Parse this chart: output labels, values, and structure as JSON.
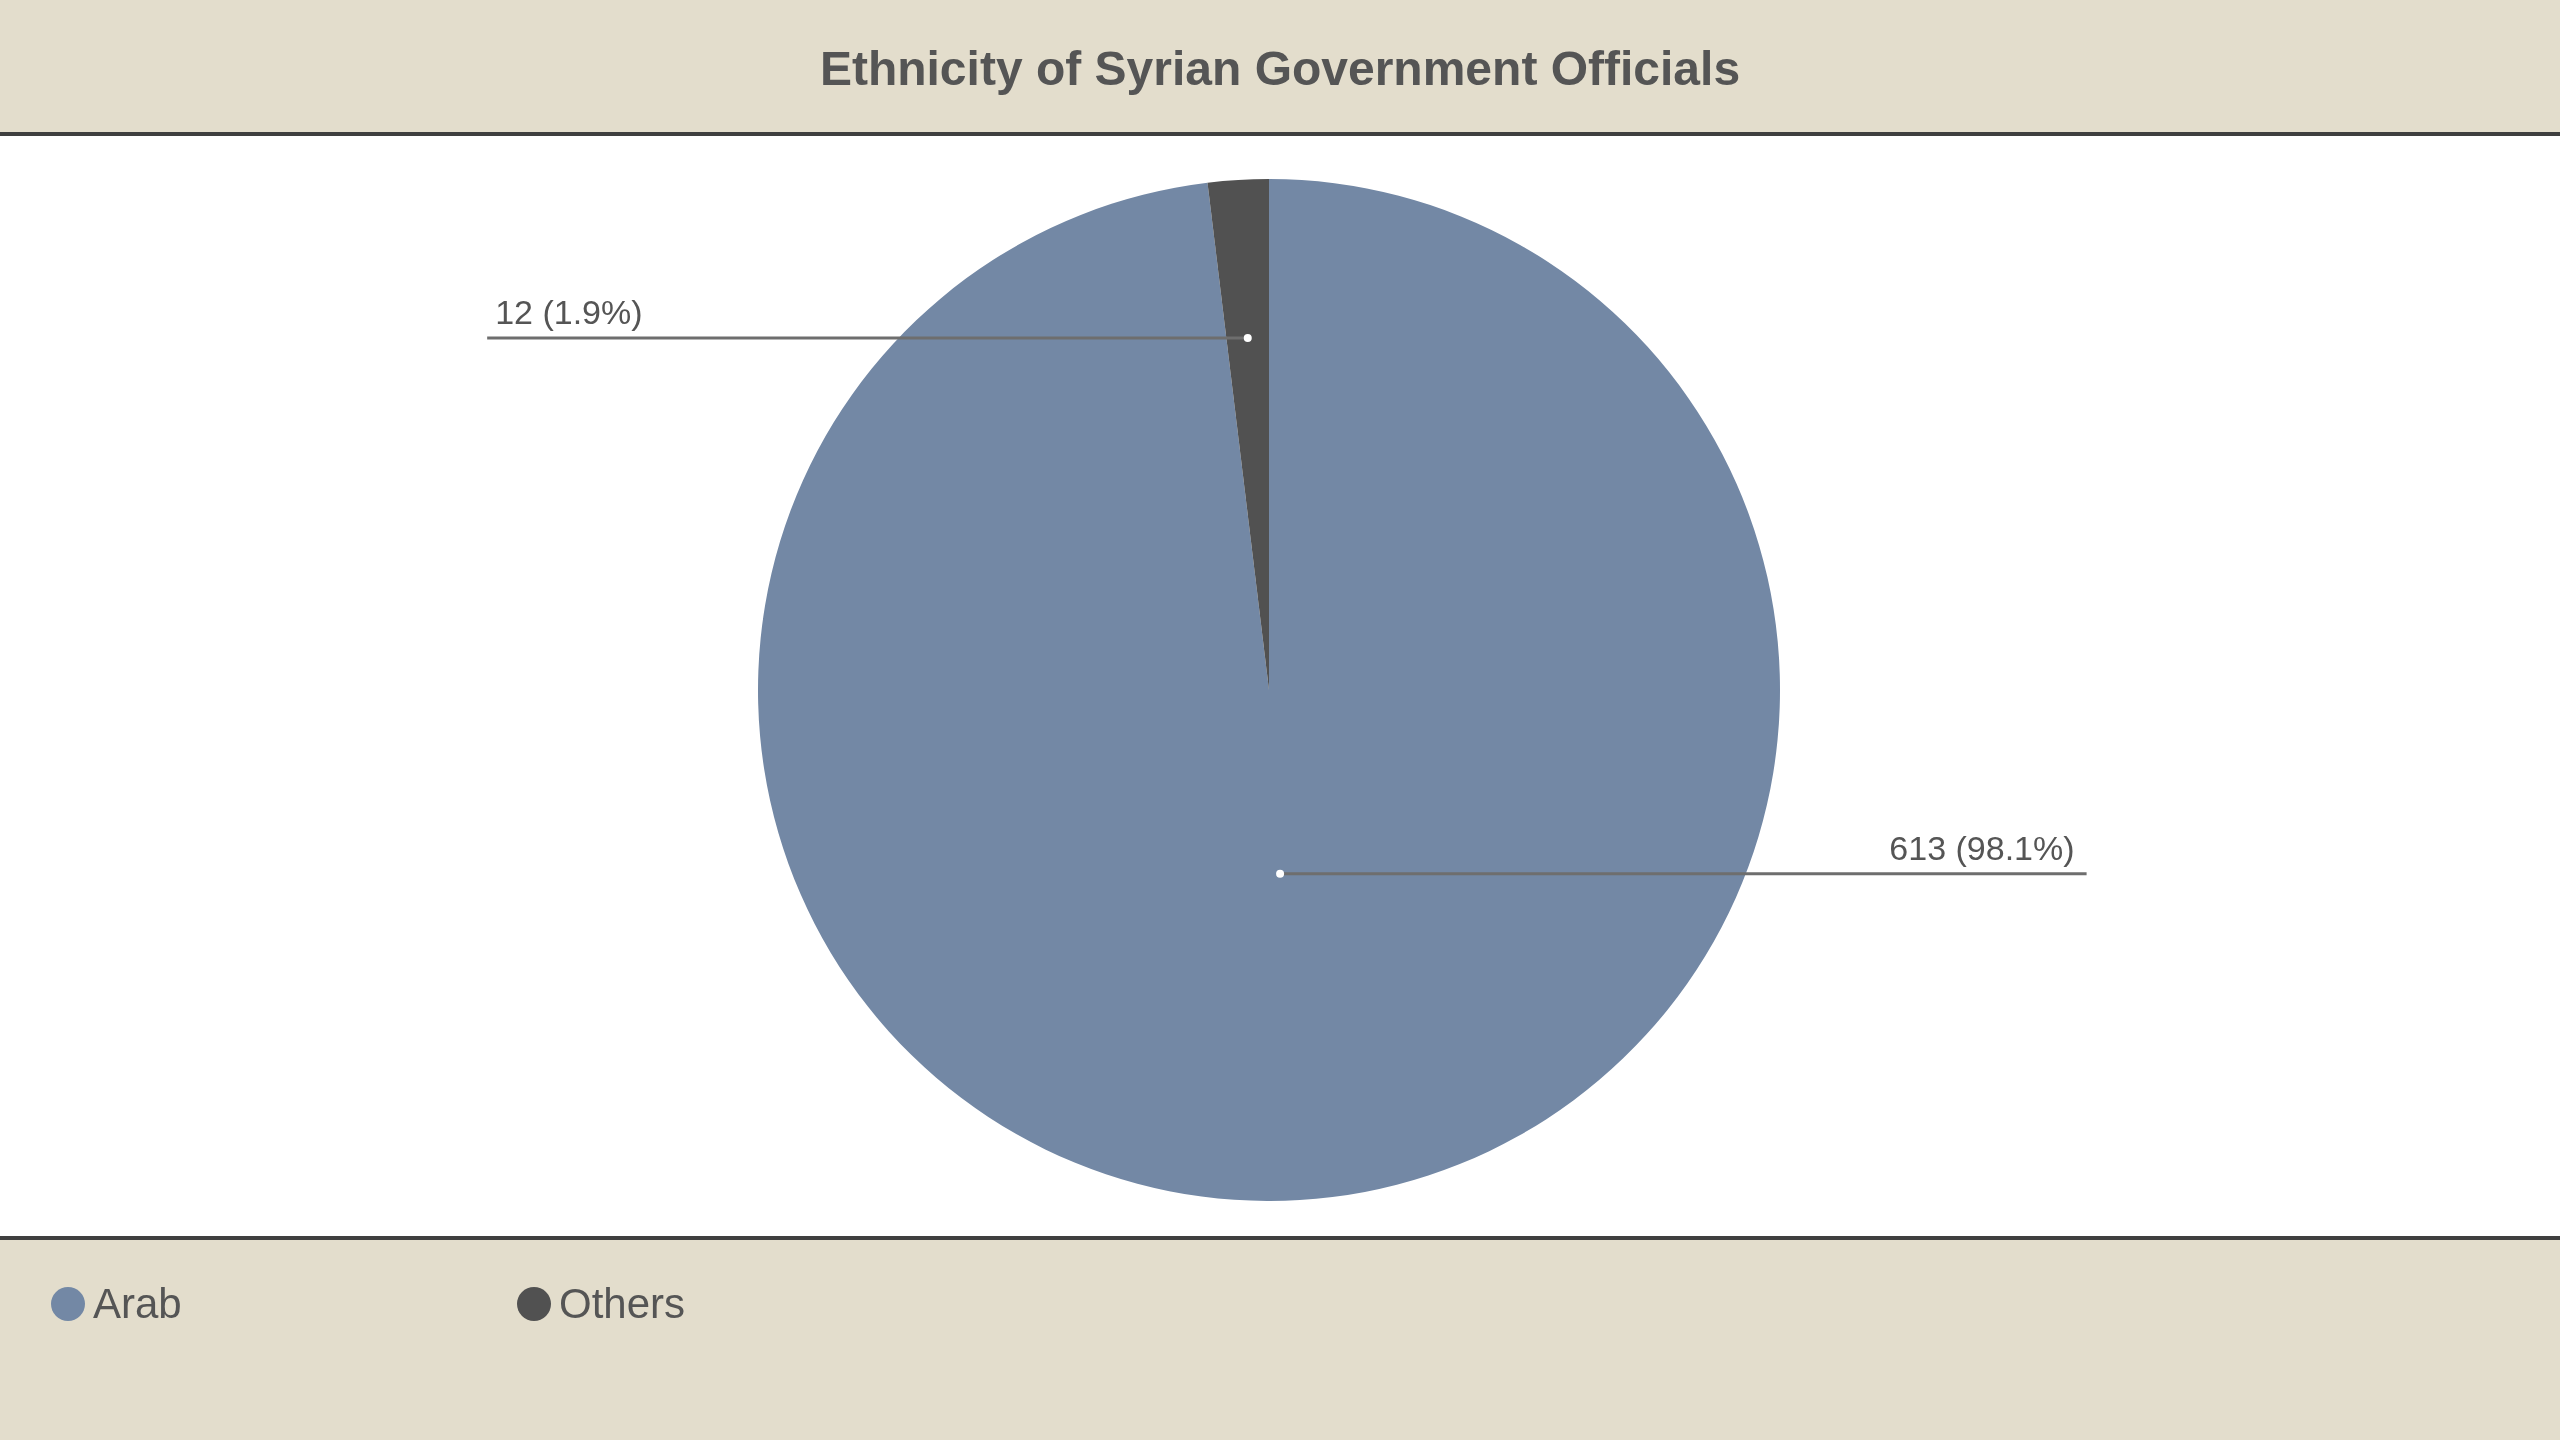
{
  "chart_data": {
    "type": "pie",
    "title": "Ethnicity of Syrian Government Officials",
    "categories": [
      "Arab",
      "Others"
    ],
    "values": [
      613,
      12
    ],
    "colors": [
      "#7388a5",
      "#515151"
    ],
    "value_labels": [
      "613 (98.1%)",
      "12 (1.9%)"
    ],
    "legend": "bottom left"
  }
}
